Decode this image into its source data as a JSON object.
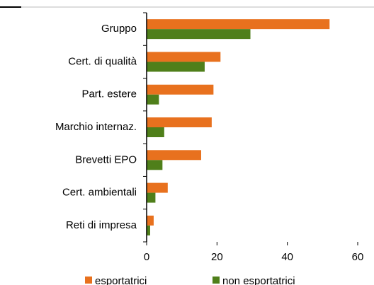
{
  "chart_data": {
    "type": "hbar",
    "categories": [
      "Gruppo",
      "Cert. di qualità",
      "Part. estere",
      "Marchio internaz.",
      "Brevetti EPO",
      "Cert. ambientali",
      "Reti di impresa"
    ],
    "series": [
      {
        "name": "esportatrici",
        "color": "#e8711e",
        "values": [
          52,
          21,
          19,
          18.5,
          15.5,
          6,
          2
        ]
      },
      {
        "name": "non esportatrici",
        "color": "#4f7f1a",
        "values": [
          29.5,
          16.5,
          3.5,
          5,
          4.5,
          2.5,
          1
        ]
      }
    ],
    "xlim": [
      0,
      60
    ],
    "xticks": [
      0,
      20,
      40,
      60
    ]
  }
}
